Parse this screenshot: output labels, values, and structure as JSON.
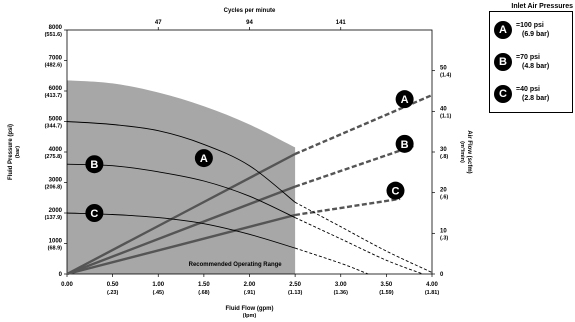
{
  "chart_data": {
    "type": "line",
    "x_axis": {
      "title": "Fluid Flow (gpm)",
      "subtitle": "(lpm)",
      "range": [
        0,
        4.0
      ],
      "ticks": [
        {
          "v": 0,
          "label": "0.00",
          "sub": ""
        },
        {
          "v": 0.5,
          "label": "0.50",
          "sub": "(.23)"
        },
        {
          "v": 1.0,
          "label": "1.00",
          "sub": "(.45)"
        },
        {
          "v": 1.5,
          "label": "1.50",
          "sub": "(.68)"
        },
        {
          "v": 2.0,
          "label": "2.00",
          "sub": "(.91)"
        },
        {
          "v": 2.5,
          "label": "2.50",
          "sub": "(1.13)"
        },
        {
          "v": 3.0,
          "label": "3.00",
          "sub": "(1.36)"
        },
        {
          "v": 3.5,
          "label": "3.50",
          "sub": "(1.59)"
        },
        {
          "v": 4.0,
          "label": "4.00",
          "sub": "(1.81)"
        }
      ]
    },
    "top_axis": {
      "title": "Cycles per minute",
      "ticks": [
        {
          "v": 1.0,
          "label": "47"
        },
        {
          "v": 2.0,
          "label": "94"
        },
        {
          "v": 3.0,
          "label": "141"
        }
      ]
    },
    "y_left": {
      "title": "Fluid Pressure (psi)",
      "subtitle": "(bar)",
      "range": [
        0,
        8000
      ],
      "ticks": [
        {
          "v": 0,
          "label": "0",
          "sub": ""
        },
        {
          "v": 1000,
          "label": "1000",
          "sub": "(68.9)"
        },
        {
          "v": 2000,
          "label": "2000",
          "sub": "(137.9)"
        },
        {
          "v": 3000,
          "label": "3000",
          "sub": "(206.8)"
        },
        {
          "v": 4000,
          "label": "4000",
          "sub": "(275.8)"
        },
        {
          "v": 5000,
          "label": "5000",
          "sub": "(344.7)"
        },
        {
          "v": 6000,
          "label": "6000",
          "sub": "(413.7)"
        },
        {
          "v": 7000,
          "label": "7000",
          "sub": "(482.6)"
        },
        {
          "v": 8000,
          "label": "8000",
          "sub": "(551.6)"
        }
      ]
    },
    "y_right": {
      "title": "Air Flow (scfm)",
      "subtitle": "(m³/min)",
      "range": [
        0,
        60
      ],
      "ticks": [
        {
          "v": 0,
          "label": "0",
          "sub": ""
        },
        {
          "v": 10,
          "label": "10",
          "sub": "(.3)"
        },
        {
          "v": 20,
          "label": "20",
          "sub": "(.6)"
        },
        {
          "v": 30,
          "label": "30",
          "sub": "(.8)"
        },
        {
          "v": 40,
          "label": "40",
          "sub": "(1.1)"
        },
        {
          "v": 50,
          "label": "50",
          "sub": "(1.4)"
        }
      ]
    },
    "operating_range": {
      "label": "Recommended Operating Range",
      "x_max": 2.5,
      "boundary": [
        [
          0,
          6350
        ],
        [
          0.5,
          6250
        ],
        [
          1.0,
          5950
        ],
        [
          1.5,
          5500
        ],
        [
          2.0,
          4900
        ],
        [
          2.5,
          4150
        ]
      ],
      "color": "#a7a7a7"
    },
    "pressure_series": [
      {
        "name": "A",
        "points": [
          [
            0,
            5000
          ],
          [
            0.5,
            4900
          ],
          [
            1.0,
            4700
          ],
          [
            1.5,
            4250
          ],
          [
            2.0,
            3550
          ],
          [
            2.5,
            2350
          ],
          [
            3.0,
            1550
          ],
          [
            3.5,
            750
          ],
          [
            4.0,
            50
          ]
        ],
        "solid_until": 2.5
      },
      {
        "name": "B",
        "points": [
          [
            0,
            3600
          ],
          [
            0.5,
            3550
          ],
          [
            1.0,
            3350
          ],
          [
            1.5,
            3050
          ],
          [
            2.0,
            2550
          ],
          [
            2.5,
            1850
          ],
          [
            3.0,
            1150
          ],
          [
            3.5,
            450
          ],
          [
            3.9,
            0
          ]
        ],
        "solid_until": 2.5
      },
      {
        "name": "C",
        "points": [
          [
            0,
            2000
          ],
          [
            0.5,
            1950
          ],
          [
            1.0,
            1850
          ],
          [
            1.5,
            1650
          ],
          [
            2.0,
            1300
          ],
          [
            2.5,
            850
          ],
          [
            3.0,
            350
          ],
          [
            3.3,
            0
          ]
        ],
        "solid_until": 2.5
      }
    ],
    "airflow_series": [
      {
        "name": "A",
        "points": [
          [
            0,
            0
          ],
          [
            2.5,
            29.5
          ],
          [
            4.0,
            44
          ]
        ],
        "solid_until": 2.5
      },
      {
        "name": "B",
        "points": [
          [
            0,
            0
          ],
          [
            2.5,
            21.5
          ],
          [
            3.8,
            31.5
          ]
        ],
        "solid_until": 2.5
      },
      {
        "name": "C",
        "points": [
          [
            0,
            0
          ],
          [
            2.5,
            14.5
          ],
          [
            3.65,
            18.5
          ]
        ],
        "solid_until": 2.5
      }
    ],
    "badges": [
      {
        "letter": "A",
        "series": "pressure",
        "at": [
          1.5,
          3800
        ]
      },
      {
        "letter": "B",
        "series": "pressure",
        "at": [
          0.3,
          3600
        ]
      },
      {
        "letter": "C",
        "series": "pressure",
        "at": [
          0.3,
          2000
        ]
      },
      {
        "letter": "A",
        "series": "airflow",
        "at": [
          3.7,
          43
        ]
      },
      {
        "letter": "B",
        "series": "airflow",
        "at": [
          3.7,
          32
        ]
      },
      {
        "letter": "C",
        "series": "airflow",
        "at": [
          3.6,
          20.5
        ]
      }
    ]
  },
  "legend": {
    "title": "Inlet Air Pressures",
    "items": [
      {
        "letter": "A",
        "line1": "=100 psi",
        "line2": "(6.9 bar)"
      },
      {
        "letter": "B",
        "line1": "=70 psi",
        "line2": "(4.8 bar)"
      },
      {
        "letter": "C",
        "line1": "=40 psi",
        "line2": "(2.8 bar)"
      }
    ]
  }
}
